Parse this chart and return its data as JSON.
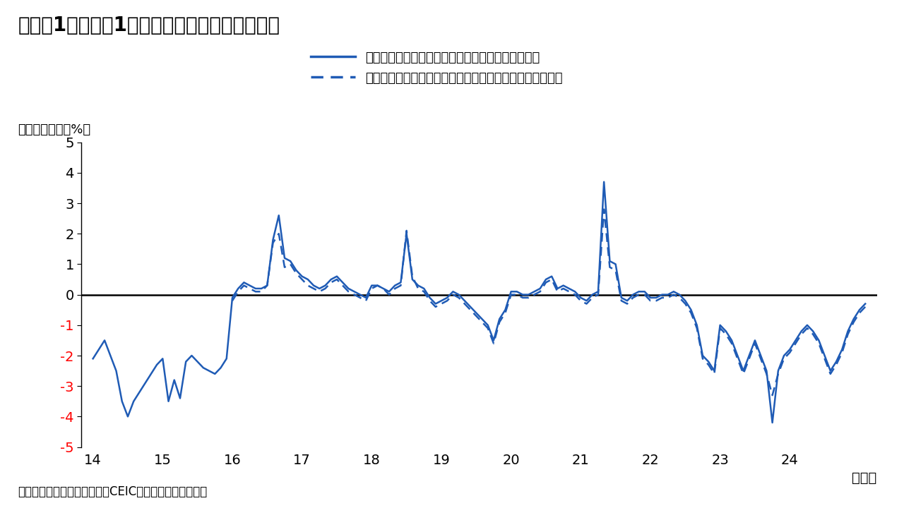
{
  "title": "（図表1）日本：1人あたり実質平均賃金の推移",
  "ylabel": "（前年同月比、%）",
  "xlabel_note": "（年）",
  "source": "（出所）毎月勤労統計およびCEICよりインベスコが作成",
  "legend1": "１人あたり実質賃金（公表値、共通事業所ベース）",
  "legend2": "１人あたり実質賃金（公表値、共通事業所でないベース）",
  "line_color": "#1f5bb5",
  "ylim": [
    -5,
    5
  ],
  "yticks": [
    -5,
    -4,
    -3,
    -2,
    -1,
    0,
    1,
    2,
    3,
    4,
    5
  ],
  "xticks": [
    0,
    12,
    24,
    36,
    48,
    60,
    72,
    84,
    96,
    108,
    120
  ],
  "xtick_labels": [
    "14",
    "15",
    "16",
    "17",
    "18",
    "19",
    "20",
    "21",
    "22",
    "23",
    "24"
  ],
  "solid": [
    -2.1,
    -1.8,
    -1.5,
    -2.0,
    -2.5,
    -3.5,
    -4.0,
    -3.5,
    -3.2,
    -2.9,
    -2.6,
    -2.3,
    -2.1,
    -3.5,
    -2.8,
    -3.4,
    -2.2,
    -2.0,
    -2.2,
    -2.4,
    -2.5,
    -2.6,
    -2.4,
    -2.1,
    -0.1,
    0.2,
    0.4,
    0.3,
    0.2,
    0.2,
    0.3,
    1.8,
    2.6,
    1.2,
    1.1,
    0.8,
    0.6,
    0.5,
    0.3,
    0.2,
    0.3,
    0.5,
    0.6,
    0.4,
    0.2,
    0.1,
    0.0,
    -0.1,
    0.3,
    0.3,
    0.2,
    0.1,
    0.3,
    0.4,
    2.0,
    0.5,
    0.3,
    0.2,
    -0.1,
    -0.3,
    -0.2,
    -0.1,
    0.1,
    0.0,
    -0.2,
    -0.4,
    -0.6,
    -0.8,
    -1.0,
    -1.5,
    -0.8,
    -0.5,
    0.1,
    0.1,
    0.0,
    0.0,
    0.1,
    0.2,
    0.5,
    0.6,
    0.2,
    0.3,
    0.2,
    0.1,
    -0.1,
    -0.2,
    0.0,
    0.1,
    3.7,
    1.1,
    1.0,
    -0.1,
    -0.2,
    0.0,
    0.1,
    0.1,
    -0.1,
    -0.1,
    0.0,
    0.0,
    0.1,
    0.0,
    -0.2,
    -0.5,
    -1.0,
    -2.0,
    -2.2,
    -2.5,
    -1.0,
    -1.2,
    -1.5,
    -2.0,
    -2.5,
    -2.0,
    -1.5,
    -2.0,
    -2.5,
    -4.2,
    -2.5,
    -2.0,
    -1.8,
    -1.5,
    -1.2,
    -1.0,
    -1.2,
    -1.5,
    -2.0,
    -2.5,
    -2.2,
    -1.8,
    -1.2,
    -0.8,
    -0.5,
    -0.3
  ],
  "dashed": [
    null,
    null,
    null,
    null,
    null,
    null,
    null,
    null,
    null,
    null,
    null,
    null,
    null,
    null,
    null,
    null,
    null,
    null,
    null,
    null,
    null,
    null,
    null,
    null,
    -0.2,
    0.1,
    0.3,
    0.2,
    0.1,
    0.1,
    0.3,
    1.7,
    2.0,
    0.9,
    1.0,
    0.7,
    0.5,
    0.3,
    0.2,
    0.1,
    0.2,
    0.4,
    0.5,
    0.3,
    0.1,
    0.0,
    -0.1,
    -0.2,
    0.2,
    0.3,
    0.2,
    0.0,
    0.2,
    0.3,
    2.1,
    0.6,
    0.2,
    0.1,
    -0.2,
    -0.4,
    -0.3,
    -0.2,
    0.0,
    -0.1,
    -0.3,
    -0.5,
    -0.7,
    -0.9,
    -1.1,
    -1.6,
    -0.9,
    -0.6,
    0.0,
    0.0,
    -0.1,
    -0.1,
    0.0,
    0.1,
    0.4,
    0.5,
    0.1,
    0.2,
    0.1,
    0.0,
    -0.2,
    -0.3,
    -0.1,
    0.0,
    2.8,
    0.9,
    0.8,
    -0.2,
    -0.3,
    -0.1,
    0.0,
    0.0,
    -0.2,
    -0.2,
    -0.1,
    -0.1,
    0.0,
    -0.1,
    -0.3,
    -0.6,
    -1.1,
    -2.1,
    -2.3,
    -2.6,
    -1.1,
    -1.3,
    -1.6,
    -2.1,
    -2.6,
    -2.1,
    -1.6,
    -2.1,
    -2.6,
    -3.3,
    -2.6,
    -2.1,
    -1.9,
    -1.6,
    -1.3,
    -1.1,
    -1.3,
    -1.6,
    -2.1,
    -2.6,
    -2.3,
    -1.9,
    -1.3,
    -0.9,
    -0.6,
    -0.4
  ],
  "title_fontsize": 20,
  "tick_fontsize": 14,
  "legend_fontsize": 13,
  "ylabel_fontsize": 13,
  "source_fontsize": 12
}
